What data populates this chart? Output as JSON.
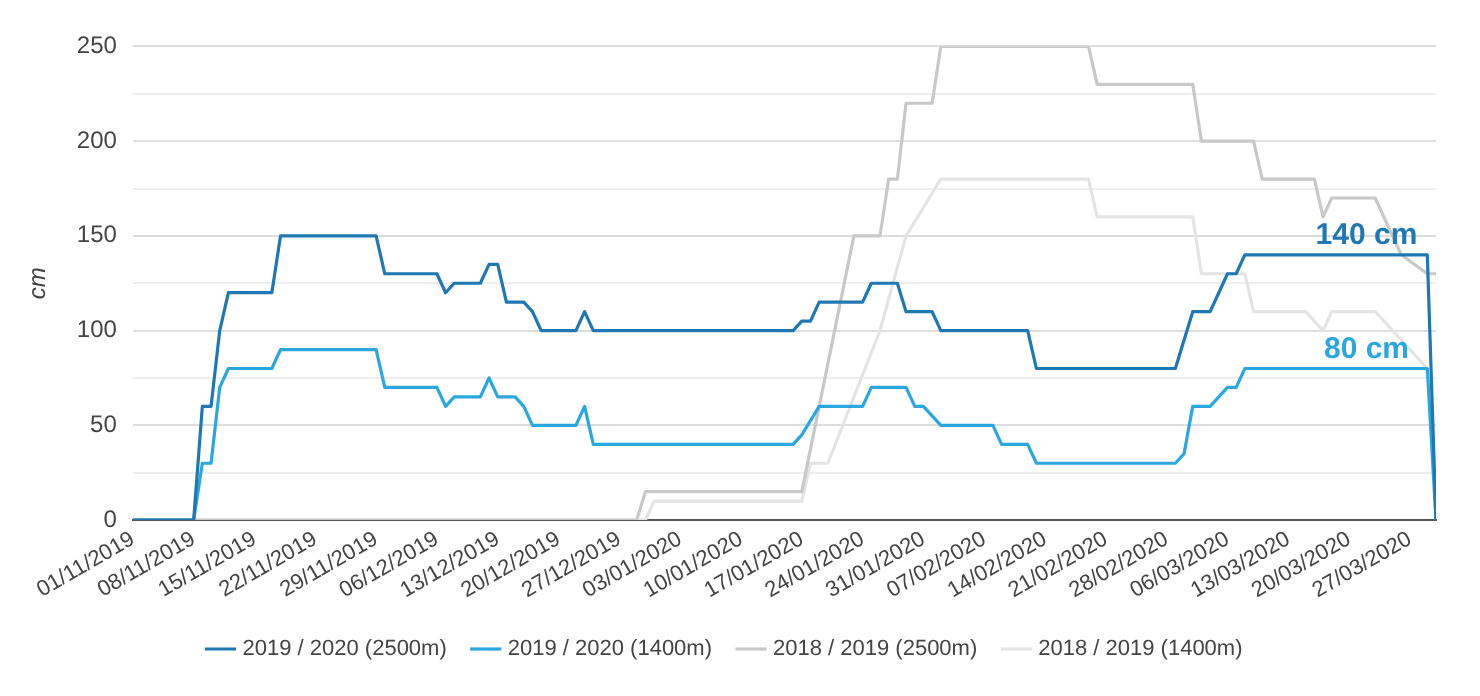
{
  "chart_data": {
    "type": "line",
    "ylabel": "cm",
    "xlim": [
      "2019-11-01",
      "2020-03-30"
    ],
    "xticks": [
      {
        "value": "2019-11-01",
        "label": "01/11/2019"
      },
      {
        "value": "2019-11-08",
        "label": "08/11/2019"
      },
      {
        "value": "2019-11-15",
        "label": "15/11/2019"
      },
      {
        "value": "2019-11-22",
        "label": "22/11/2019"
      },
      {
        "value": "2019-11-29",
        "label": "29/11/2019"
      },
      {
        "value": "2019-12-06",
        "label": "06/12/2019"
      },
      {
        "value": "2019-12-13",
        "label": "13/12/2019"
      },
      {
        "value": "2019-12-20",
        "label": "20/12/2019"
      },
      {
        "value": "2019-12-27",
        "label": "27/12/2019"
      },
      {
        "value": "2020-01-03",
        "label": "03/01/2020"
      },
      {
        "value": "2020-01-10",
        "label": "10/01/2020"
      },
      {
        "value": "2020-01-17",
        "label": "17/01/2020"
      },
      {
        "value": "2020-01-24",
        "label": "24/01/2020"
      },
      {
        "value": "2020-01-31",
        "label": "31/01/2020"
      },
      {
        "value": "2020-02-07",
        "label": "07/02/2020"
      },
      {
        "value": "2020-02-14",
        "label": "14/02/2020"
      },
      {
        "value": "2020-02-21",
        "label": "21/02/2020"
      },
      {
        "value": "2020-02-28",
        "label": "28/02/2020"
      },
      {
        "value": "2020-03-06",
        "label": "06/03/2020"
      },
      {
        "value": "2020-03-13",
        "label": "13/03/2020"
      },
      {
        "value": "2020-03-20",
        "label": "20/03/2020"
      },
      {
        "value": "2020-03-27",
        "label": "27/03/2020"
      }
    ],
    "ylim": [
      0,
      250
    ],
    "yticks": [
      0,
      {
        "value": 25,
        "label": null
      },
      50,
      {
        "value": 75,
        "label": null
      },
      100,
      {
        "value": 125,
        "label": null
      },
      150,
      {
        "value": 175,
        "label": null
      },
      200,
      {
        "value": 225,
        "label": null
      },
      250
    ],
    "grid": "y",
    "legend": "bottom",
    "marker": "none",
    "line_style": "solid",
    "annotations": [
      {
        "text": "140 cm",
        "x": "2020-03-22",
        "y": 140
      },
      {
        "text": "80 cm",
        "x": "2020-03-22",
        "y": 80
      }
    ],
    "series": [
      {
        "name": "2019 / 2020 (2500m)",
        "color": "#1f78b4",
        "x": [
          "2019-11-01",
          "2019-11-08",
          "2019-11-09",
          "2019-11-10",
          "2019-11-11",
          "2019-11-12",
          "2019-11-17",
          "2019-11-18",
          "2019-11-29",
          "2019-11-30",
          "2019-12-06",
          "2019-12-07",
          "2019-12-08",
          "2019-12-11",
          "2019-12-12",
          "2019-12-13",
          "2019-12-14",
          "2019-12-16",
          "2019-12-17",
          "2019-12-18",
          "2019-12-22",
          "2019-12-23",
          "2019-12-24",
          "2020-01-16",
          "2020-01-17",
          "2020-01-18",
          "2020-01-19",
          "2020-01-24",
          "2020-01-25",
          "2020-01-28",
          "2020-01-29",
          "2020-02-01",
          "2020-02-02",
          "2020-02-12",
          "2020-02-13",
          "2020-02-29",
          "2020-03-02",
          "2020-03-04",
          "2020-03-05",
          "2020-03-06",
          "2020-03-07",
          "2020-03-08",
          "2020-03-29",
          "2020-03-30"
        ],
        "values": [
          0,
          0,
          60,
          60,
          100,
          120,
          120,
          150,
          150,
          130,
          130,
          120,
          125,
          125,
          135,
          135,
          115,
          115,
          110,
          100,
          100,
          110,
          100,
          100,
          105,
          105,
          115,
          115,
          125,
          125,
          110,
          110,
          100,
          100,
          80,
          80,
          110,
          110,
          120,
          130,
          130,
          140,
          140,
          0
        ]
      },
      {
        "name": "2019 / 2020 (1400m)",
        "color": "#2aa7df",
        "x": [
          "2019-11-01",
          "2019-11-08",
          "2019-11-09",
          "2019-11-10",
          "2019-11-11",
          "2019-11-12",
          "2019-11-17",
          "2019-11-18",
          "2019-11-29",
          "2019-11-30",
          "2019-12-06",
          "2019-12-07",
          "2019-12-08",
          "2019-12-11",
          "2019-12-12",
          "2019-12-13",
          "2019-12-15",
          "2019-12-16",
          "2019-12-17",
          "2019-12-22",
          "2019-12-23",
          "2019-12-24",
          "2020-01-16",
          "2020-01-17",
          "2020-01-19",
          "2020-01-24",
          "2020-01-25",
          "2020-01-29",
          "2020-01-30",
          "2020-01-31",
          "2020-02-02",
          "2020-02-08",
          "2020-02-09",
          "2020-02-12",
          "2020-02-13",
          "2020-02-29",
          "2020-03-01",
          "2020-03-02",
          "2020-03-04",
          "2020-03-06",
          "2020-03-07",
          "2020-03-08",
          "2020-03-29",
          "2020-03-30"
        ],
        "values": [
          0,
          0,
          30,
          30,
          70,
          80,
          80,
          90,
          90,
          70,
          70,
          60,
          65,
          65,
          75,
          65,
          65,
          60,
          50,
          50,
          60,
          40,
          40,
          45,
          60,
          60,
          70,
          70,
          60,
          60,
          50,
          50,
          40,
          40,
          30,
          30,
          35,
          60,
          60,
          70,
          70,
          80,
          80,
          0
        ]
      },
      {
        "name": "2018 / 2019 (2500m)",
        "color": "#c8c8c8",
        "x": [
          "2019-11-01",
          "2019-12-29",
          "2019-12-30",
          "2020-01-17",
          "2020-01-23",
          "2020-01-26",
          "2020-01-27",
          "2020-01-28",
          "2020-01-29",
          "2020-02-01",
          "2020-02-02",
          "2020-02-19",
          "2020-02-20",
          "2020-03-02",
          "2020-03-03",
          "2020-03-09",
          "2020-03-10",
          "2020-03-16",
          "2020-03-17",
          "2020-03-18",
          "2020-03-23",
          "2020-03-26",
          "2020-03-29",
          "2020-03-30"
        ],
        "values": [
          0,
          0,
          15,
          15,
          150,
          150,
          180,
          180,
          220,
          220,
          250,
          250,
          230,
          230,
          200,
          200,
          180,
          180,
          160,
          170,
          170,
          140,
          130,
          130
        ]
      },
      {
        "name": "2018 / 2019 (1400m)",
        "color": "#e4e4e4",
        "x": [
          "2019-11-01",
          "2019-12-30",
          "2019-12-31",
          "2020-01-17",
          "2020-01-18",
          "2020-01-20",
          "2020-01-26",
          "2020-01-29",
          "2020-02-02",
          "2020-02-19",
          "2020-02-20",
          "2020-03-02",
          "2020-03-03",
          "2020-03-08",
          "2020-03-09",
          "2020-03-15",
          "2020-03-17",
          "2020-03-18",
          "2020-03-23",
          "2020-03-29"
        ],
        "values": [
          0,
          0,
          10,
          10,
          30,
          30,
          100,
          150,
          180,
          180,
          160,
          160,
          130,
          130,
          110,
          110,
          100,
          110,
          110,
          80
        ]
      }
    ]
  }
}
